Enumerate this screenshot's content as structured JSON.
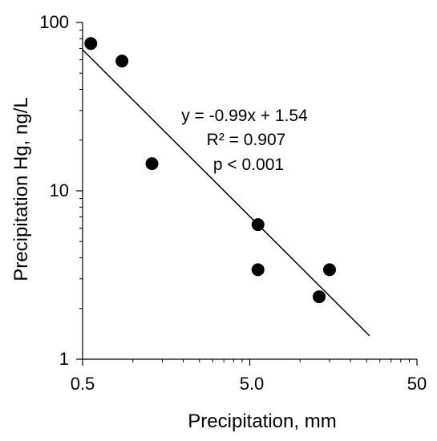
{
  "chart_data": {
    "type": "scatter",
    "title": "",
    "xlabel": "Precipitation, mm",
    "ylabel": "Precipitation Hg, ng/L",
    "x_scale": "log",
    "y_scale": "log",
    "xlim": [
      0.5,
      50
    ],
    "ylim": [
      1,
      100
    ],
    "x_ticks": [
      "0.5",
      "5.0",
      "50"
    ],
    "y_ticks": [
      "100",
      "10",
      "1"
    ],
    "grid": false,
    "legend": "none",
    "points": [
      {
        "x": 0.56,
        "y": 75
      },
      {
        "x": 0.86,
        "y": 59
      },
      {
        "x": 1.3,
        "y": 14.5
      },
      {
        "x": 5.6,
        "y": 6.3
      },
      {
        "x": 5.6,
        "y": 3.4
      },
      {
        "x": 15,
        "y": 3.4
      },
      {
        "x": 13,
        "y": 2.35
      }
    ],
    "fit": {
      "x_start": 0.5,
      "x_end": 26,
      "slope": -0.99,
      "intercept": 1.54
    },
    "annotations": [
      "y = -0.99x + 1.54",
      "R² = 0.907",
      "p < 0.001"
    ],
    "marker_color": "#000000",
    "line_color": "#000000"
  }
}
